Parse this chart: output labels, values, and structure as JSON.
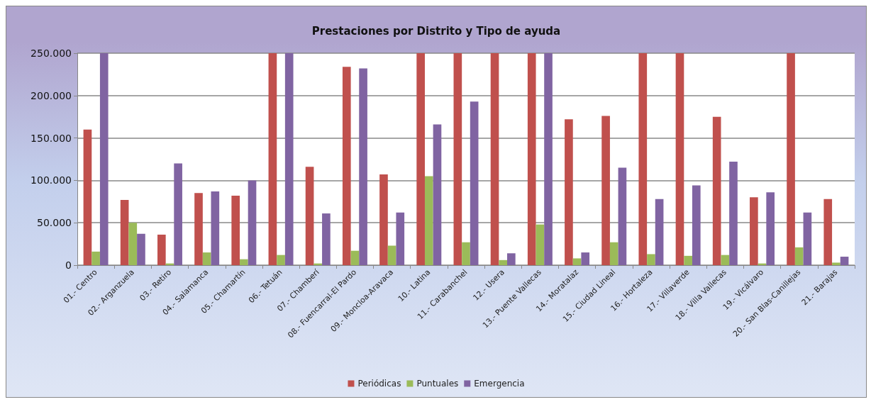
{
  "chart_data": {
    "type": "bar",
    "title": "Prestaciones por Distrito y Tipo de ayuda",
    "categories": [
      "01.- Centro",
      "02.- Arganzuela",
      "03.- Retiro",
      "04.- Salamanca",
      "05.- Chamartín",
      "06.- Tetuán",
      "07.- Chamberí",
      "08.- Fuencarral-El Pardo",
      "09.- Moncloa-Aravaca",
      "10.- Latina",
      "11.- Carabanchel",
      "12.- Usera",
      "13.- Puente Vallecas",
      "14.- Moratalaz",
      "15.- Ciudad Lineal",
      "16.- Hortaleza",
      "17.- Villaverde",
      "18.- Villa Vallecas",
      "19.- Vicálvaro",
      "20.- San Blas-Canillejas",
      "21.- Barajas"
    ],
    "series": [
      {
        "name": "Periódicas",
        "color": "#c0504d",
        "values": [
          160000,
          77000,
          36000,
          85000,
          82000,
          250000,
          116000,
          234000,
          107000,
          250000,
          250000,
          250000,
          250000,
          172000,
          176000,
          250000,
          250000,
          175000,
          80000,
          250000,
          78000
        ]
      },
      {
        "name": "Puntuales",
        "color": "#9bbb59",
        "values": [
          16000,
          50000,
          2000,
          15000,
          7000,
          12000,
          2000,
          17000,
          23000,
          105000,
          27000,
          6000,
          48000,
          8000,
          27000,
          13000,
          11000,
          12000,
          2000,
          21000,
          3000
        ]
      },
      {
        "name": "Emergencia",
        "color": "#8064a2",
        "values": [
          250000,
          37000,
          120000,
          87000,
          100000,
          250000,
          61000,
          232000,
          62000,
          166000,
          193000,
          14000,
          250000,
          15000,
          115000,
          78000,
          94000,
          122000,
          86000,
          62000,
          10000
        ]
      }
    ],
    "ylim": [
      0,
      250000
    ],
    "yticks": [
      {
        "value": 0,
        "label": "0"
      },
      {
        "value": 50000,
        "label": "50.000"
      },
      {
        "value": 100000,
        "label": "100.000"
      },
      {
        "value": 150000,
        "label": "150.000"
      },
      {
        "value": 200000,
        "label": "200.000"
      },
      {
        "value": 250000,
        "label": "250.000"
      }
    ],
    "grid": "y",
    "legend": "bottom"
  }
}
